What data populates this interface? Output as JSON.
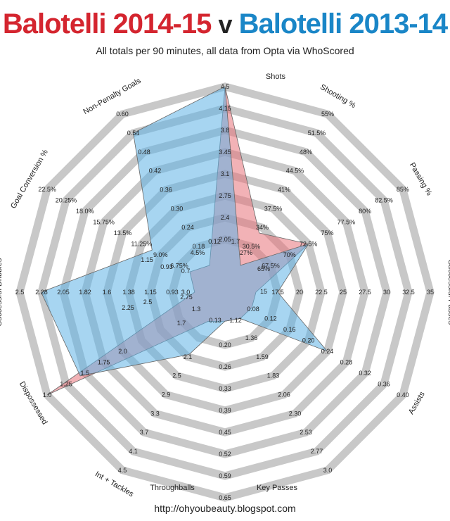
{
  "header": {
    "title_a": "Balotelli 2014-15",
    "title_v": "v",
    "title_b": "Balotelli 2013-14",
    "subtitle": "All totals per 90 minutes, all data from Opta via WhoScored"
  },
  "footer": {
    "url": "http://ohyoubeauty.blogspot.com"
  },
  "colors": {
    "series_2014_15": "#e8737a",
    "series_2013_14": "#5eb3e6",
    "ring_band": "#c8c8c8",
    "title_2014_15": "#d4252f",
    "title_2013_14": "#1a86c7"
  },
  "chart_data": {
    "type": "radar",
    "levels": 8,
    "axes": [
      {
        "name": "Shots",
        "min": 2.05,
        "max": 4.5,
        "ticks": [
          "2.05",
          "2.4",
          "2.75",
          "3.1",
          "3.45",
          "3.8",
          "4.15",
          "4.5"
        ]
      },
      {
        "name": "Shooting %",
        "min": 30.5,
        "max": 55,
        "ticks": [
          "30.5%",
          "34%",
          "37.5%",
          "41%",
          "44.5%",
          "48%",
          "51.5%",
          "55%"
        ]
      },
      {
        "name": "Passing %",
        "min": 67.5,
        "max": 85,
        "ticks": [
          "67.5%",
          "70%",
          "72.5%",
          "75%",
          "77.5%",
          "80%",
          "82.5%",
          "85%"
        ]
      },
      {
        "name": "Successful Passes",
        "min": 17.5,
        "max": 35,
        "ticks": [
          "17.5",
          "20",
          "22.5",
          "25",
          "27.5",
          "30",
          "32.5",
          "35"
        ]
      },
      {
        "name": "Assists",
        "min": 0.12,
        "max": 0.4,
        "ticks": [
          "0.12",
          "0.16",
          "0.20",
          "0.24",
          "0.28",
          "0.32",
          "0.36",
          "0.40"
        ]
      },
      {
        "name": "Key Passes",
        "min": 1.36,
        "max": 3.0,
        "ticks": [
          "1.36",
          "1.59",
          "1.83",
          "2.06",
          "2.30",
          "2.53",
          "2.77",
          "3.0"
        ]
      },
      {
        "name": "Throughballs",
        "min": 0.2,
        "max": 0.65,
        "ticks": [
          "0.20",
          "0.26",
          "0.33",
          "0.39",
          "0.45",
          "0.52",
          "0.59",
          "0.65"
        ]
      },
      {
        "name": "Int + Tackles",
        "min": 2.1,
        "max": 4.5,
        "ticks": [
          "2.1",
          "2.5",
          "2.9",
          "3.3",
          "3.7",
          "4.1",
          "4.5"
        ]
      },
      {
        "name": "Dispossessed",
        "min": 1.0,
        "max": 2.0,
        "ticks": [
          "2.0",
          "1.75",
          "1.5",
          "1.25",
          "1.0"
        ]
      },
      {
        "name": "Successful Dribbles",
        "min": 0.93,
        "max": 2.5,
        "ticks": [
          "0.93",
          "1.15",
          "1.38",
          "1.6",
          "1.82",
          "2.05",
          "2.28",
          "2.5"
        ]
      },
      {
        "name": "Goal Conversion %",
        "min": 6.75,
        "max": 22.5,
        "ticks": [
          "6.75%",
          "9.0%",
          "11.25%",
          "13.5%",
          "15.75%",
          "18.0%",
          "20.25%",
          "22.5%"
        ]
      },
      {
        "name": "Non-Penalty Goals",
        "min": 0.18,
        "max": 0.6,
        "ticks": [
          "0.18",
          "0.24",
          "0.30",
          "0.36",
          "0.42",
          "0.48",
          "0.54",
          "0.60"
        ]
      }
    ],
    "inner_ticks": [
      "1.7",
      "27%",
      "65%",
      "15",
      "0.08",
      "1.12",
      "0.13",
      "1.7",
      "2.25",
      "0.7",
      "4.5%",
      "0.12",
      "1.3",
      "2.75",
      "0.93",
      "1.15",
      "3.0",
      "2.5"
    ],
    "series": [
      {
        "name": "Balotelli 2014-15",
        "values": [
          4.5,
          33,
          72.5,
          15,
          0.08,
          1.12,
          0.13,
          1.8,
          2.0,
          0.7,
          5.5,
          0.12
        ]
      },
      {
        "name": "Balotelli 2013-14",
        "values": [
          4.5,
          27,
          72.5,
          17.5,
          0.24,
          1.12,
          0.13,
          2.4,
          1.75,
          2.28,
          10.0,
          0.54
        ]
      }
    ]
  }
}
